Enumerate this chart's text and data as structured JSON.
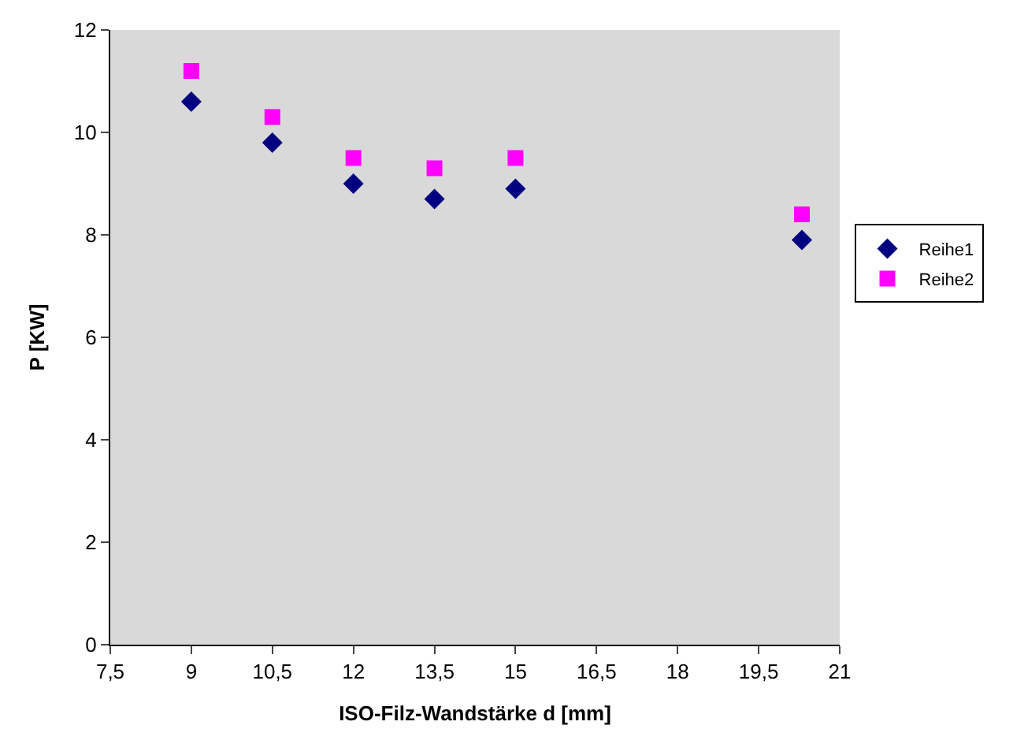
{
  "chart_data": {
    "type": "scatter",
    "xlabel": "ISO-Filz-Wandstärke d [mm]",
    "ylabel": "P [KW]",
    "x": [
      9,
      10.5,
      12,
      13.5,
      15,
      20.3
    ],
    "series": [
      {
        "name": "Reihe1",
        "color": "#000080",
        "marker": "diamond",
        "values": [
          10.6,
          9.8,
          9.0,
          8.7,
          8.9,
          7.9
        ]
      },
      {
        "name": "Reihe2",
        "color": "#ff00ff",
        "marker": "square",
        "values": [
          11.2,
          10.3,
          9.5,
          9.3,
          9.5,
          8.4
        ]
      }
    ],
    "xlim": [
      7.5,
      21
    ],
    "xticks": [
      {
        "value": 7.5,
        "label": "7,5"
      },
      9,
      {
        "value": 10.5,
        "label": "10,5"
      },
      12,
      {
        "value": 13.5,
        "label": "13,5"
      },
      15,
      {
        "value": 16.5,
        "label": "16,5"
      },
      18,
      {
        "value": 19.5,
        "label": "19,5"
      },
      21
    ],
    "ylim": [
      0,
      12
    ],
    "yticks": [
      0,
      2,
      4,
      6,
      8,
      10,
      12
    ],
    "grid": false,
    "legend": "right"
  }
}
